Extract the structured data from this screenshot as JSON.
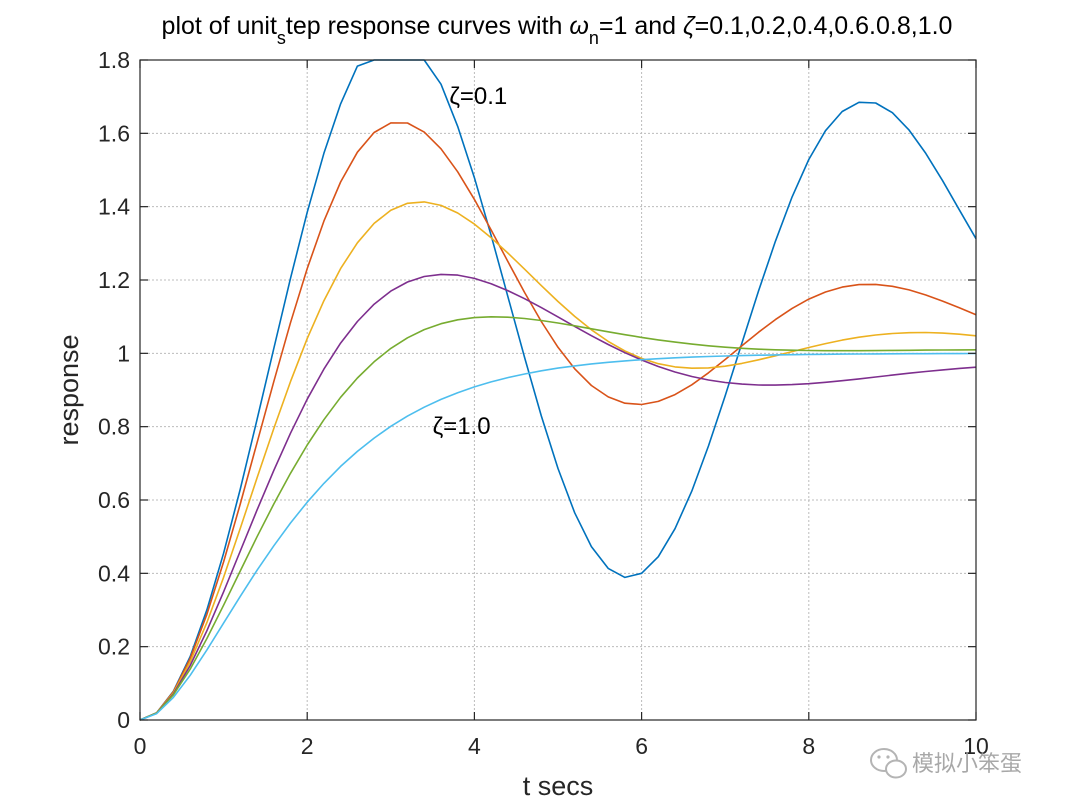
{
  "chart_data": {
    "type": "line",
    "title_parts": {
      "t1": "plot of unit",
      "t2": "s",
      "t3": "tep response curves with ",
      "t4": "ω",
      "t5": "n",
      "t6": "=1 and ",
      "t7": "ζ",
      "t8": "=0.1,0.2,0.4,0.6.0.8,1.0"
    },
    "xlabel": "t secs",
    "ylabel": "response",
    "xlim": [
      0,
      10
    ],
    "ylim": [
      0,
      1.8
    ],
    "xticks": [
      0,
      2,
      4,
      6,
      8,
      10
    ],
    "xtick_labels": [
      "0",
      "2",
      "4",
      "6",
      "8",
      "10"
    ],
    "yticks": [
      0,
      0.2,
      0.4,
      0.6,
      0.8,
      1.0,
      1.2,
      1.4,
      1.6,
      1.8
    ],
    "ytick_labels": [
      "0",
      "0.2",
      "0.4",
      "0.6",
      "0.8",
      "1",
      "1.2",
      "1.4",
      "1.6",
      "1.8"
    ],
    "grid": true,
    "annotations": [
      {
        "text": "ζ=0.1",
        "x": 3.7,
        "y": 1.68
      },
      {
        "text": "ζ=1.0",
        "x": 3.5,
        "y": 0.78
      }
    ],
    "x": [
      0,
      0.2,
      0.4,
      0.6,
      0.8,
      1,
      1.2,
      1.4,
      1.6,
      1.8,
      2,
      2.2,
      2.4,
      2.6,
      2.8,
      3,
      3.2,
      3.4,
      3.6,
      3.8,
      4,
      4.2,
      4.4,
      4.6,
      4.8,
      5,
      5.2,
      5.4,
      5.6,
      5.8,
      6,
      6.2,
      6.4,
      6.6,
      6.8,
      7,
      7.2,
      7.4,
      7.6,
      7.8,
      8,
      8.2,
      8.4,
      8.6,
      8.8,
      9,
      9.2,
      9.4,
      9.6,
      9.8,
      10
    ],
    "series": [
      {
        "color": "#0072bd",
        "values": [
          0,
          0.0199,
          0.0785,
          0.1733,
          0.3005,
          0.4549,
          0.6301,
          0.8189,
          1.0132,
          1.2046,
          1.3846,
          1.5456,
          1.6804,
          1.7833,
          1.8503,
          1.8787,
          1.8678,
          1.8187,
          1.7341,
          1.6188,
          1.479,
          1.3219,
          1.1556,
          0.9886,
          0.8294,
          0.6859,
          0.5652,
          0.473,
          0.4135,
          0.389,
          0.4001,
          0.4454,
          0.5217,
          0.6244,
          0.7475,
          0.8844,
          1.0278,
          1.1705,
          1.3056,
          1.4267,
          1.5286,
          1.6071,
          1.6595,
          1.6845,
          1.6827,
          1.6563,
          1.6089,
          1.5452,
          1.4708,
          1.3914,
          1.3127
        ]
      },
      {
        "color": "#d95319",
        "values": [
          0,
          0.0197,
          0.0771,
          0.1683,
          0.2884,
          0.4311,
          0.5894,
          0.7558,
          0.9229,
          1.0835,
          1.2312,
          1.3606,
          1.4674,
          1.5485,
          1.6022,
          1.6284,
          1.6281,
          1.6035,
          1.5579,
          1.4951,
          1.4198,
          1.3367,
          1.2506,
          1.1659,
          1.0868,
          1.0165,
          0.9578,
          0.9124,
          0.8812,
          0.8641,
          0.8604,
          0.8688,
          0.8874,
          0.9142,
          0.9469,
          0.9832,
          1.0208,
          1.0577,
          1.0921,
          1.1226,
          1.1479,
          1.1674,
          1.1806,
          1.1874,
          1.188,
          1.1829,
          1.173,
          1.1592,
          1.1425,
          1.1241,
          1.1051
        ]
      },
      {
        "color": "#edb120",
        "values": [
          0,
          0.0195,
          0.0742,
          0.1586,
          0.2658,
          0.3893,
          0.5228,
          0.6599,
          0.7949,
          0.923,
          1.0402,
          1.1436,
          1.2311,
          1.3015,
          1.3544,
          1.39,
          1.4091,
          1.413,
          1.4035,
          1.3826,
          1.3525,
          1.3154,
          1.2737,
          1.2295,
          1.1848,
          1.1414,
          1.1008,
          1.0642,
          1.0326,
          1.0065,
          0.9862,
          0.9718,
          0.9631,
          0.9595,
          0.9604,
          0.965,
          0.9726,
          0.9823,
          0.9932,
          1.0047,
          1.016,
          1.0266,
          1.036,
          1.0439,
          1.05,
          1.0542,
          1.0564,
          1.0567,
          1.0552,
          1.0521,
          1.0477
        ]
      },
      {
        "color": "#7e2f8e",
        "values": [
          0,
          0.0192,
          0.0713,
          0.1486,
          0.2436,
          0.3496,
          0.4609,
          0.5725,
          0.6806,
          0.7822,
          0.8749,
          0.9571,
          1.0279,
          1.0869,
          1.134,
          1.1697,
          1.1946,
          1.2095,
          1.2153,
          1.2133,
          1.2044,
          1.19,
          1.1712,
          1.1491,
          1.1248,
          1.0993,
          1.0735,
          1.0482,
          1.0241,
          1.0018,
          0.9817,
          0.964,
          0.9491,
          0.9369,
          0.9274,
          0.9205,
          0.916,
          0.9137,
          0.9134,
          0.9146,
          0.9172,
          0.9209,
          0.9253,
          0.9302,
          0.9354,
          0.9406,
          0.9457,
          0.9505,
          0.9549,
          0.9588,
          0.9621
        ]
      },
      {
        "color": "#77ac30",
        "values": [
          0,
          0.019,
          0.0686,
          0.1389,
          0.2224,
          0.3131,
          0.4067,
          0.4996,
          0.589,
          0.6729,
          0.7499,
          0.8191,
          0.8801,
          0.9326,
          0.977,
          1.0134,
          1.0424,
          1.0646,
          1.0807,
          1.0914,
          1.0975,
          1.0997,
          1.0986,
          1.095,
          1.0895,
          1.0827,
          1.075,
          1.0669,
          1.0588,
          1.0509,
          1.0434,
          1.0366,
          1.0305,
          1.0251,
          1.0206,
          1.0168,
          1.0138,
          1.0114,
          1.0097,
          1.0085,
          1.0077,
          1.0073,
          1.0072,
          1.0073,
          1.0075,
          1.0079,
          1.0083,
          1.0087,
          1.009,
          1.0093,
          1.0095
        ]
      },
      {
        "color": "#4dbeee",
        "values": [
          0,
          0.0175,
          0.0616,
          0.1219,
          0.1912,
          0.2642,
          0.3374,
          0.4082,
          0.4751,
          0.5372,
          0.594,
          0.6454,
          0.6916,
          0.7326,
          0.7689,
          0.8009,
          0.8288,
          0.8532,
          0.8743,
          0.8926,
          0.9084,
          0.9221,
          0.9337,
          0.9437,
          0.9523,
          0.9596,
          0.9658,
          0.9711,
          0.9756,
          0.9794,
          0.9826,
          0.9854,
          0.9877,
          0.9896,
          0.9913,
          0.9927,
          0.9939,
          0.9949,
          0.9957,
          0.9964,
          0.997,
          0.9975,
          0.9979,
          0.9982,
          0.9985,
          0.9988,
          0.999,
          0.9991,
          0.9993,
          0.9994,
          0.9995
        ]
      }
    ]
  },
  "watermark": {
    "label": "模拟小笨蛋",
    "icon": "wechat-icon"
  }
}
